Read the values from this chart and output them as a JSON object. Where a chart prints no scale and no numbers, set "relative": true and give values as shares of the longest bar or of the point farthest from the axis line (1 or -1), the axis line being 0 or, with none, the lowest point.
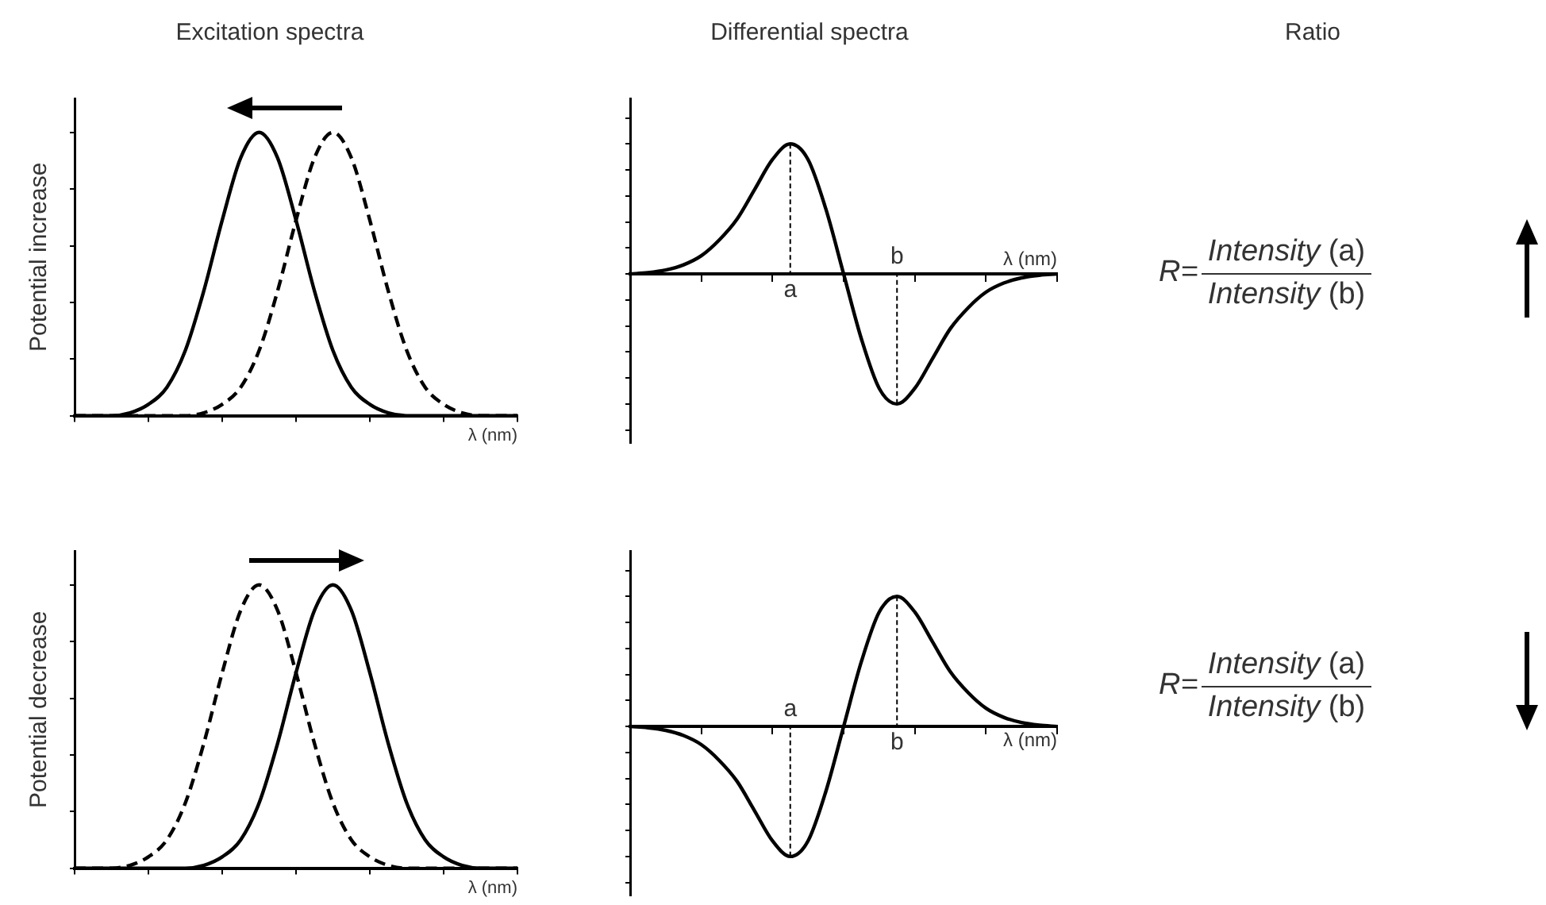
{
  "chart_data": [
    {
      "type": "line",
      "title": "Excitation spectra",
      "ylabel": "Potential increase",
      "xlabel": "λ (nm)",
      "categories": [
        null,
        null,
        null,
        null,
        null,
        null,
        null,
        null,
        null,
        null,
        null,
        null,
        null,
        null,
        null,
        null,
        null,
        null,
        null,
        null,
        null,
        null,
        null,
        null,
        null
      ],
      "relative": true,
      "tick_labels": false,
      "marker": "none",
      "series": [
        {
          "color": "#000000",
          "line_style": "solid",
          "values": [
            0,
            0,
            0,
            0.01,
            0.04,
            0.1,
            0.23,
            0.44,
            0.69,
            0.91,
            1,
            0.91,
            0.69,
            0.44,
            0.23,
            0.1,
            0.04,
            0.01,
            0,
            0,
            0,
            0,
            0,
            0,
            0
          ]
        },
        {
          "color": "#000000",
          "line_style": "dashed",
          "values": [
            0,
            0,
            0,
            0,
            0,
            0,
            0,
            0.01,
            0.04,
            0.1,
            0.23,
            0.44,
            0.69,
            0.91,
            1,
            0.91,
            0.69,
            0.44,
            0.23,
            0.1,
            0.04,
            0.01,
            0,
            0,
            0
          ]
        }
      ]
    },
    {
      "type": "line",
      "title": "Differential spectra",
      "xlabel": "λ (nm)",
      "categories": [
        null,
        null,
        null,
        null,
        null,
        null,
        null,
        null,
        null,
        null,
        null,
        null,
        null,
        null,
        null,
        null,
        null,
        null,
        null,
        null,
        null,
        null,
        null,
        null,
        null
      ],
      "relative": true,
      "tick_labels": false,
      "marker": "none",
      "annotations": [
        "a",
        "b"
      ],
      "series": [
        {
          "color": "#000000",
          "line_style": "solid",
          "values": [
            0,
            0.01,
            0.03,
            0.07,
            0.14,
            0.26,
            0.42,
            0.65,
            0.88,
            1,
            0.88,
            0.5,
            0,
            -0.5,
            -0.88,
            -1,
            -0.88,
            -0.65,
            -0.42,
            -0.26,
            -0.14,
            -0.07,
            -0.03,
            -0.01,
            0
          ]
        }
      ]
    },
    {
      "type": "other",
      "title": "Ratio",
      "annotations": [
        "R=",
        "Intensity (a)",
        "Intensity (b)"
      ]
    },
    {
      "type": "line",
      "ylabel": "Potential decrease",
      "xlabel": "λ (nm)",
      "categories": [
        null,
        null,
        null,
        null,
        null,
        null,
        null,
        null,
        null,
        null,
        null,
        null,
        null,
        null,
        null,
        null,
        null,
        null,
        null,
        null,
        null,
        null,
        null,
        null,
        null
      ],
      "relative": true,
      "tick_labels": false,
      "marker": "none",
      "series": [
        {
          "color": "#000000",
          "line_style": "solid",
          "values": [
            0,
            0,
            0,
            0,
            0,
            0,
            0,
            0.01,
            0.04,
            0.1,
            0.23,
            0.44,
            0.69,
            0.91,
            1,
            0.91,
            0.69,
            0.44,
            0.23,
            0.1,
            0.04,
            0.01,
            0,
            0,
            0
          ]
        },
        {
          "color": "#000000",
          "line_style": "dashed",
          "values": [
            0,
            0,
            0,
            0.01,
            0.04,
            0.1,
            0.23,
            0.44,
            0.69,
            0.91,
            1,
            0.91,
            0.69,
            0.44,
            0.23,
            0.1,
            0.04,
            0.01,
            0,
            0,
            0,
            0,
            0,
            0,
            0
          ]
        }
      ]
    },
    {
      "type": "line",
      "xlabel": "λ (nm)",
      "categories": [
        null,
        null,
        null,
        null,
        null,
        null,
        null,
        null,
        null,
        null,
        null,
        null,
        null,
        null,
        null,
        null,
        null,
        null,
        null,
        null,
        null,
        null,
        null,
        null,
        null
      ],
      "relative": true,
      "tick_labels": false,
      "marker": "none",
      "annotations": [
        "a",
        "b"
      ],
      "series": [
        {
          "color": "#000000",
          "line_style": "solid",
          "values": [
            0,
            -0.01,
            -0.03,
            -0.07,
            -0.14,
            -0.26,
            -0.42,
            -0.65,
            -0.88,
            -1,
            -0.88,
            -0.5,
            0,
            0.5,
            0.88,
            1,
            0.88,
            0.65,
            0.42,
            0.26,
            0.14,
            0.07,
            0.03,
            0.01,
            0
          ]
        }
      ]
    },
    {
      "type": "other",
      "annotations": [
        "R=",
        "Intensity (a)",
        "Intensity (b)"
      ]
    }
  ]
}
